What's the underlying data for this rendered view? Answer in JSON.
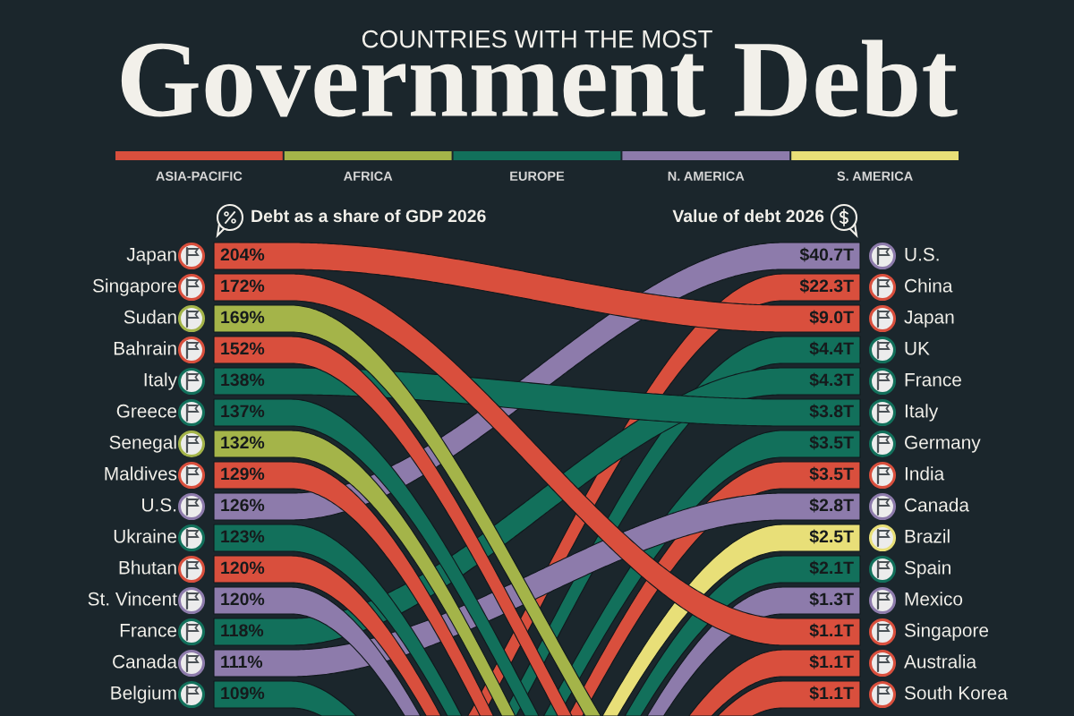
{
  "chart_data": [
    {
      "type": "other",
      "subtitle": "COUNTRIES WITH THE MOST",
      "title": "Government Debt",
      "categories": [
        "ASIA-PACIFIC",
        "AFRICA",
        "EUROPE",
        "N. AMERICA",
        "S. AMERICA"
      ],
      "colors": [
        "#d94f3d",
        "#a4b449",
        "#12705b",
        "#8d7bab",
        "#e8df78"
      ]
    },
    {
      "type": "other",
      "categories": [
        "Debt as a share of GDP 2026",
        "Value of debt 2026"
      ],
      "series": [
        {
          "name": "Japan",
          "color": "#d94f3d",
          "values": [
            204,
            9.0
          ],
          "value_labels": [
            "204%",
            "$9.0T"
          ]
        },
        {
          "name": "Singapore",
          "color": "#d94f3d",
          "values": [
            172,
            1.1
          ],
          "value_labels": [
            "172%",
            "$1.1T"
          ]
        },
        {
          "name": "Sudan",
          "color": "#a4b449",
          "values": [
            169,
            null
          ],
          "value_labels": [
            "169%",
            null
          ]
        },
        {
          "name": "Bahrain",
          "color": "#d94f3d",
          "values": [
            152,
            null
          ],
          "value_labels": [
            "152%",
            null
          ]
        },
        {
          "name": "Italy",
          "color": "#12705b",
          "values": [
            138,
            3.8
          ],
          "value_labels": [
            "138%",
            "$3.8T"
          ]
        },
        {
          "name": "Greece",
          "color": "#12705b",
          "values": [
            137,
            null
          ],
          "value_labels": [
            "137%",
            null
          ]
        },
        {
          "name": "Senegal",
          "color": "#a4b449",
          "values": [
            132,
            null
          ],
          "value_labels": [
            "132%",
            null
          ]
        },
        {
          "name": "Maldives",
          "color": "#d94f3d",
          "values": [
            129,
            null
          ],
          "value_labels": [
            "129%",
            null
          ]
        },
        {
          "name": "U.S.",
          "color": "#8d7bab",
          "values": [
            126,
            40.7
          ],
          "value_labels": [
            "126%",
            "$40.7T"
          ]
        },
        {
          "name": "Ukraine",
          "color": "#12705b",
          "values": [
            123,
            null
          ],
          "value_labels": [
            "123%",
            null
          ]
        },
        {
          "name": "Bhutan",
          "color": "#d94f3d",
          "values": [
            120,
            null
          ],
          "value_labels": [
            "120%",
            null
          ]
        },
        {
          "name": "St. Vincent",
          "color": "#8d7bab",
          "values": [
            120,
            null
          ],
          "value_labels": [
            "120%",
            null
          ]
        },
        {
          "name": "France",
          "color": "#12705b",
          "values": [
            118,
            4.3
          ],
          "value_labels": [
            "118%",
            "$4.3T"
          ]
        },
        {
          "name": "Canada",
          "color": "#8d7bab",
          "values": [
            111,
            2.8
          ],
          "value_labels": [
            "111%",
            "$2.8T"
          ]
        },
        {
          "name": "Belgium",
          "color": "#12705b",
          "values": [
            109,
            null
          ],
          "value_labels": [
            "109%",
            null
          ]
        },
        {
          "name": "China",
          "color": "#d94f3d",
          "values": [
            null,
            22.3
          ],
          "value_labels": [
            null,
            "$22.3T"
          ]
        },
        {
          "name": "UK",
          "color": "#12705b",
          "values": [
            null,
            4.4
          ],
          "value_labels": [
            null,
            "$4.4T"
          ]
        },
        {
          "name": "Germany",
          "color": "#12705b",
          "values": [
            null,
            3.5
          ],
          "value_labels": [
            null,
            "$3.5T"
          ]
        },
        {
          "name": "India",
          "color": "#d94f3d",
          "values": [
            null,
            3.5
          ],
          "value_labels": [
            null,
            "$3.5T"
          ]
        },
        {
          "name": "Brazil",
          "color": "#e8df78",
          "values": [
            null,
            2.5
          ],
          "value_labels": [
            null,
            "$2.5T"
          ]
        },
        {
          "name": "Spain",
          "color": "#12705b",
          "values": [
            null,
            2.1
          ],
          "value_labels": [
            null,
            "$2.1T"
          ]
        },
        {
          "name": "Mexico",
          "color": "#8d7bab",
          "values": [
            null,
            1.3
          ],
          "value_labels": [
            null,
            "$1.3T"
          ]
        },
        {
          "name": "Australia",
          "color": "#d94f3d",
          "values": [
            null,
            1.1
          ],
          "value_labels": [
            null,
            "$1.1T"
          ]
        },
        {
          "name": "South Korea",
          "color": "#d94f3d",
          "values": [
            null,
            1.1
          ],
          "value_labels": [
            null,
            "$1.1T"
          ]
        }
      ]
    }
  ]
}
